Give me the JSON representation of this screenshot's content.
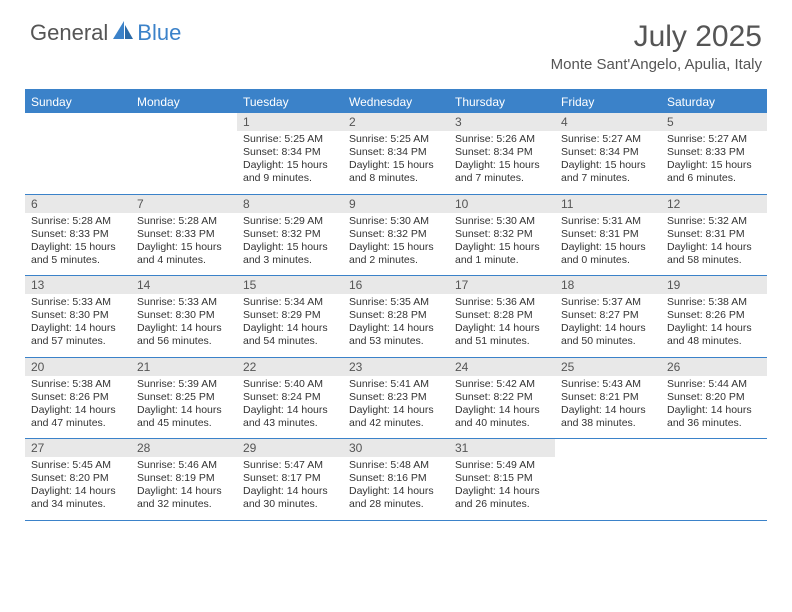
{
  "brand": {
    "part1": "General",
    "part2": "Blue"
  },
  "title": {
    "month": "July 2025",
    "location": "Monte Sant'Angelo, Apulia, Italy"
  },
  "colors": {
    "accent": "#3b82c9",
    "daynum_bg": "#e8e8e8",
    "text": "#333333",
    "muted": "#555555"
  },
  "weekdays": [
    "Sunday",
    "Monday",
    "Tuesday",
    "Wednesday",
    "Thursday",
    "Friday",
    "Saturday"
  ],
  "weeks": [
    [
      {
        "n": "",
        "sr": "",
        "ss": "",
        "dl": ""
      },
      {
        "n": "",
        "sr": "",
        "ss": "",
        "dl": ""
      },
      {
        "n": "1",
        "sr": "Sunrise: 5:25 AM",
        "ss": "Sunset: 8:34 PM",
        "dl": "Daylight: 15 hours and 9 minutes."
      },
      {
        "n": "2",
        "sr": "Sunrise: 5:25 AM",
        "ss": "Sunset: 8:34 PM",
        "dl": "Daylight: 15 hours and 8 minutes."
      },
      {
        "n": "3",
        "sr": "Sunrise: 5:26 AM",
        "ss": "Sunset: 8:34 PM",
        "dl": "Daylight: 15 hours and 7 minutes."
      },
      {
        "n": "4",
        "sr": "Sunrise: 5:27 AM",
        "ss": "Sunset: 8:34 PM",
        "dl": "Daylight: 15 hours and 7 minutes."
      },
      {
        "n": "5",
        "sr": "Sunrise: 5:27 AM",
        "ss": "Sunset: 8:33 PM",
        "dl": "Daylight: 15 hours and 6 minutes."
      }
    ],
    [
      {
        "n": "6",
        "sr": "Sunrise: 5:28 AM",
        "ss": "Sunset: 8:33 PM",
        "dl": "Daylight: 15 hours and 5 minutes."
      },
      {
        "n": "7",
        "sr": "Sunrise: 5:28 AM",
        "ss": "Sunset: 8:33 PM",
        "dl": "Daylight: 15 hours and 4 minutes."
      },
      {
        "n": "8",
        "sr": "Sunrise: 5:29 AM",
        "ss": "Sunset: 8:32 PM",
        "dl": "Daylight: 15 hours and 3 minutes."
      },
      {
        "n": "9",
        "sr": "Sunrise: 5:30 AM",
        "ss": "Sunset: 8:32 PM",
        "dl": "Daylight: 15 hours and 2 minutes."
      },
      {
        "n": "10",
        "sr": "Sunrise: 5:30 AM",
        "ss": "Sunset: 8:32 PM",
        "dl": "Daylight: 15 hours and 1 minute."
      },
      {
        "n": "11",
        "sr": "Sunrise: 5:31 AM",
        "ss": "Sunset: 8:31 PM",
        "dl": "Daylight: 15 hours and 0 minutes."
      },
      {
        "n": "12",
        "sr": "Sunrise: 5:32 AM",
        "ss": "Sunset: 8:31 PM",
        "dl": "Daylight: 14 hours and 58 minutes."
      }
    ],
    [
      {
        "n": "13",
        "sr": "Sunrise: 5:33 AM",
        "ss": "Sunset: 8:30 PM",
        "dl": "Daylight: 14 hours and 57 minutes."
      },
      {
        "n": "14",
        "sr": "Sunrise: 5:33 AM",
        "ss": "Sunset: 8:30 PM",
        "dl": "Daylight: 14 hours and 56 minutes."
      },
      {
        "n": "15",
        "sr": "Sunrise: 5:34 AM",
        "ss": "Sunset: 8:29 PM",
        "dl": "Daylight: 14 hours and 54 minutes."
      },
      {
        "n": "16",
        "sr": "Sunrise: 5:35 AM",
        "ss": "Sunset: 8:28 PM",
        "dl": "Daylight: 14 hours and 53 minutes."
      },
      {
        "n": "17",
        "sr": "Sunrise: 5:36 AM",
        "ss": "Sunset: 8:28 PM",
        "dl": "Daylight: 14 hours and 51 minutes."
      },
      {
        "n": "18",
        "sr": "Sunrise: 5:37 AM",
        "ss": "Sunset: 8:27 PM",
        "dl": "Daylight: 14 hours and 50 minutes."
      },
      {
        "n": "19",
        "sr": "Sunrise: 5:38 AM",
        "ss": "Sunset: 8:26 PM",
        "dl": "Daylight: 14 hours and 48 minutes."
      }
    ],
    [
      {
        "n": "20",
        "sr": "Sunrise: 5:38 AM",
        "ss": "Sunset: 8:26 PM",
        "dl": "Daylight: 14 hours and 47 minutes."
      },
      {
        "n": "21",
        "sr": "Sunrise: 5:39 AM",
        "ss": "Sunset: 8:25 PM",
        "dl": "Daylight: 14 hours and 45 minutes."
      },
      {
        "n": "22",
        "sr": "Sunrise: 5:40 AM",
        "ss": "Sunset: 8:24 PM",
        "dl": "Daylight: 14 hours and 43 minutes."
      },
      {
        "n": "23",
        "sr": "Sunrise: 5:41 AM",
        "ss": "Sunset: 8:23 PM",
        "dl": "Daylight: 14 hours and 42 minutes."
      },
      {
        "n": "24",
        "sr": "Sunrise: 5:42 AM",
        "ss": "Sunset: 8:22 PM",
        "dl": "Daylight: 14 hours and 40 minutes."
      },
      {
        "n": "25",
        "sr": "Sunrise: 5:43 AM",
        "ss": "Sunset: 8:21 PM",
        "dl": "Daylight: 14 hours and 38 minutes."
      },
      {
        "n": "26",
        "sr": "Sunrise: 5:44 AM",
        "ss": "Sunset: 8:20 PM",
        "dl": "Daylight: 14 hours and 36 minutes."
      }
    ],
    [
      {
        "n": "27",
        "sr": "Sunrise: 5:45 AM",
        "ss": "Sunset: 8:20 PM",
        "dl": "Daylight: 14 hours and 34 minutes."
      },
      {
        "n": "28",
        "sr": "Sunrise: 5:46 AM",
        "ss": "Sunset: 8:19 PM",
        "dl": "Daylight: 14 hours and 32 minutes."
      },
      {
        "n": "29",
        "sr": "Sunrise: 5:47 AM",
        "ss": "Sunset: 8:17 PM",
        "dl": "Daylight: 14 hours and 30 minutes."
      },
      {
        "n": "30",
        "sr": "Sunrise: 5:48 AM",
        "ss": "Sunset: 8:16 PM",
        "dl": "Daylight: 14 hours and 28 minutes."
      },
      {
        "n": "31",
        "sr": "Sunrise: 5:49 AM",
        "ss": "Sunset: 8:15 PM",
        "dl": "Daylight: 14 hours and 26 minutes."
      },
      {
        "n": "",
        "sr": "",
        "ss": "",
        "dl": ""
      },
      {
        "n": "",
        "sr": "",
        "ss": "",
        "dl": ""
      }
    ]
  ]
}
